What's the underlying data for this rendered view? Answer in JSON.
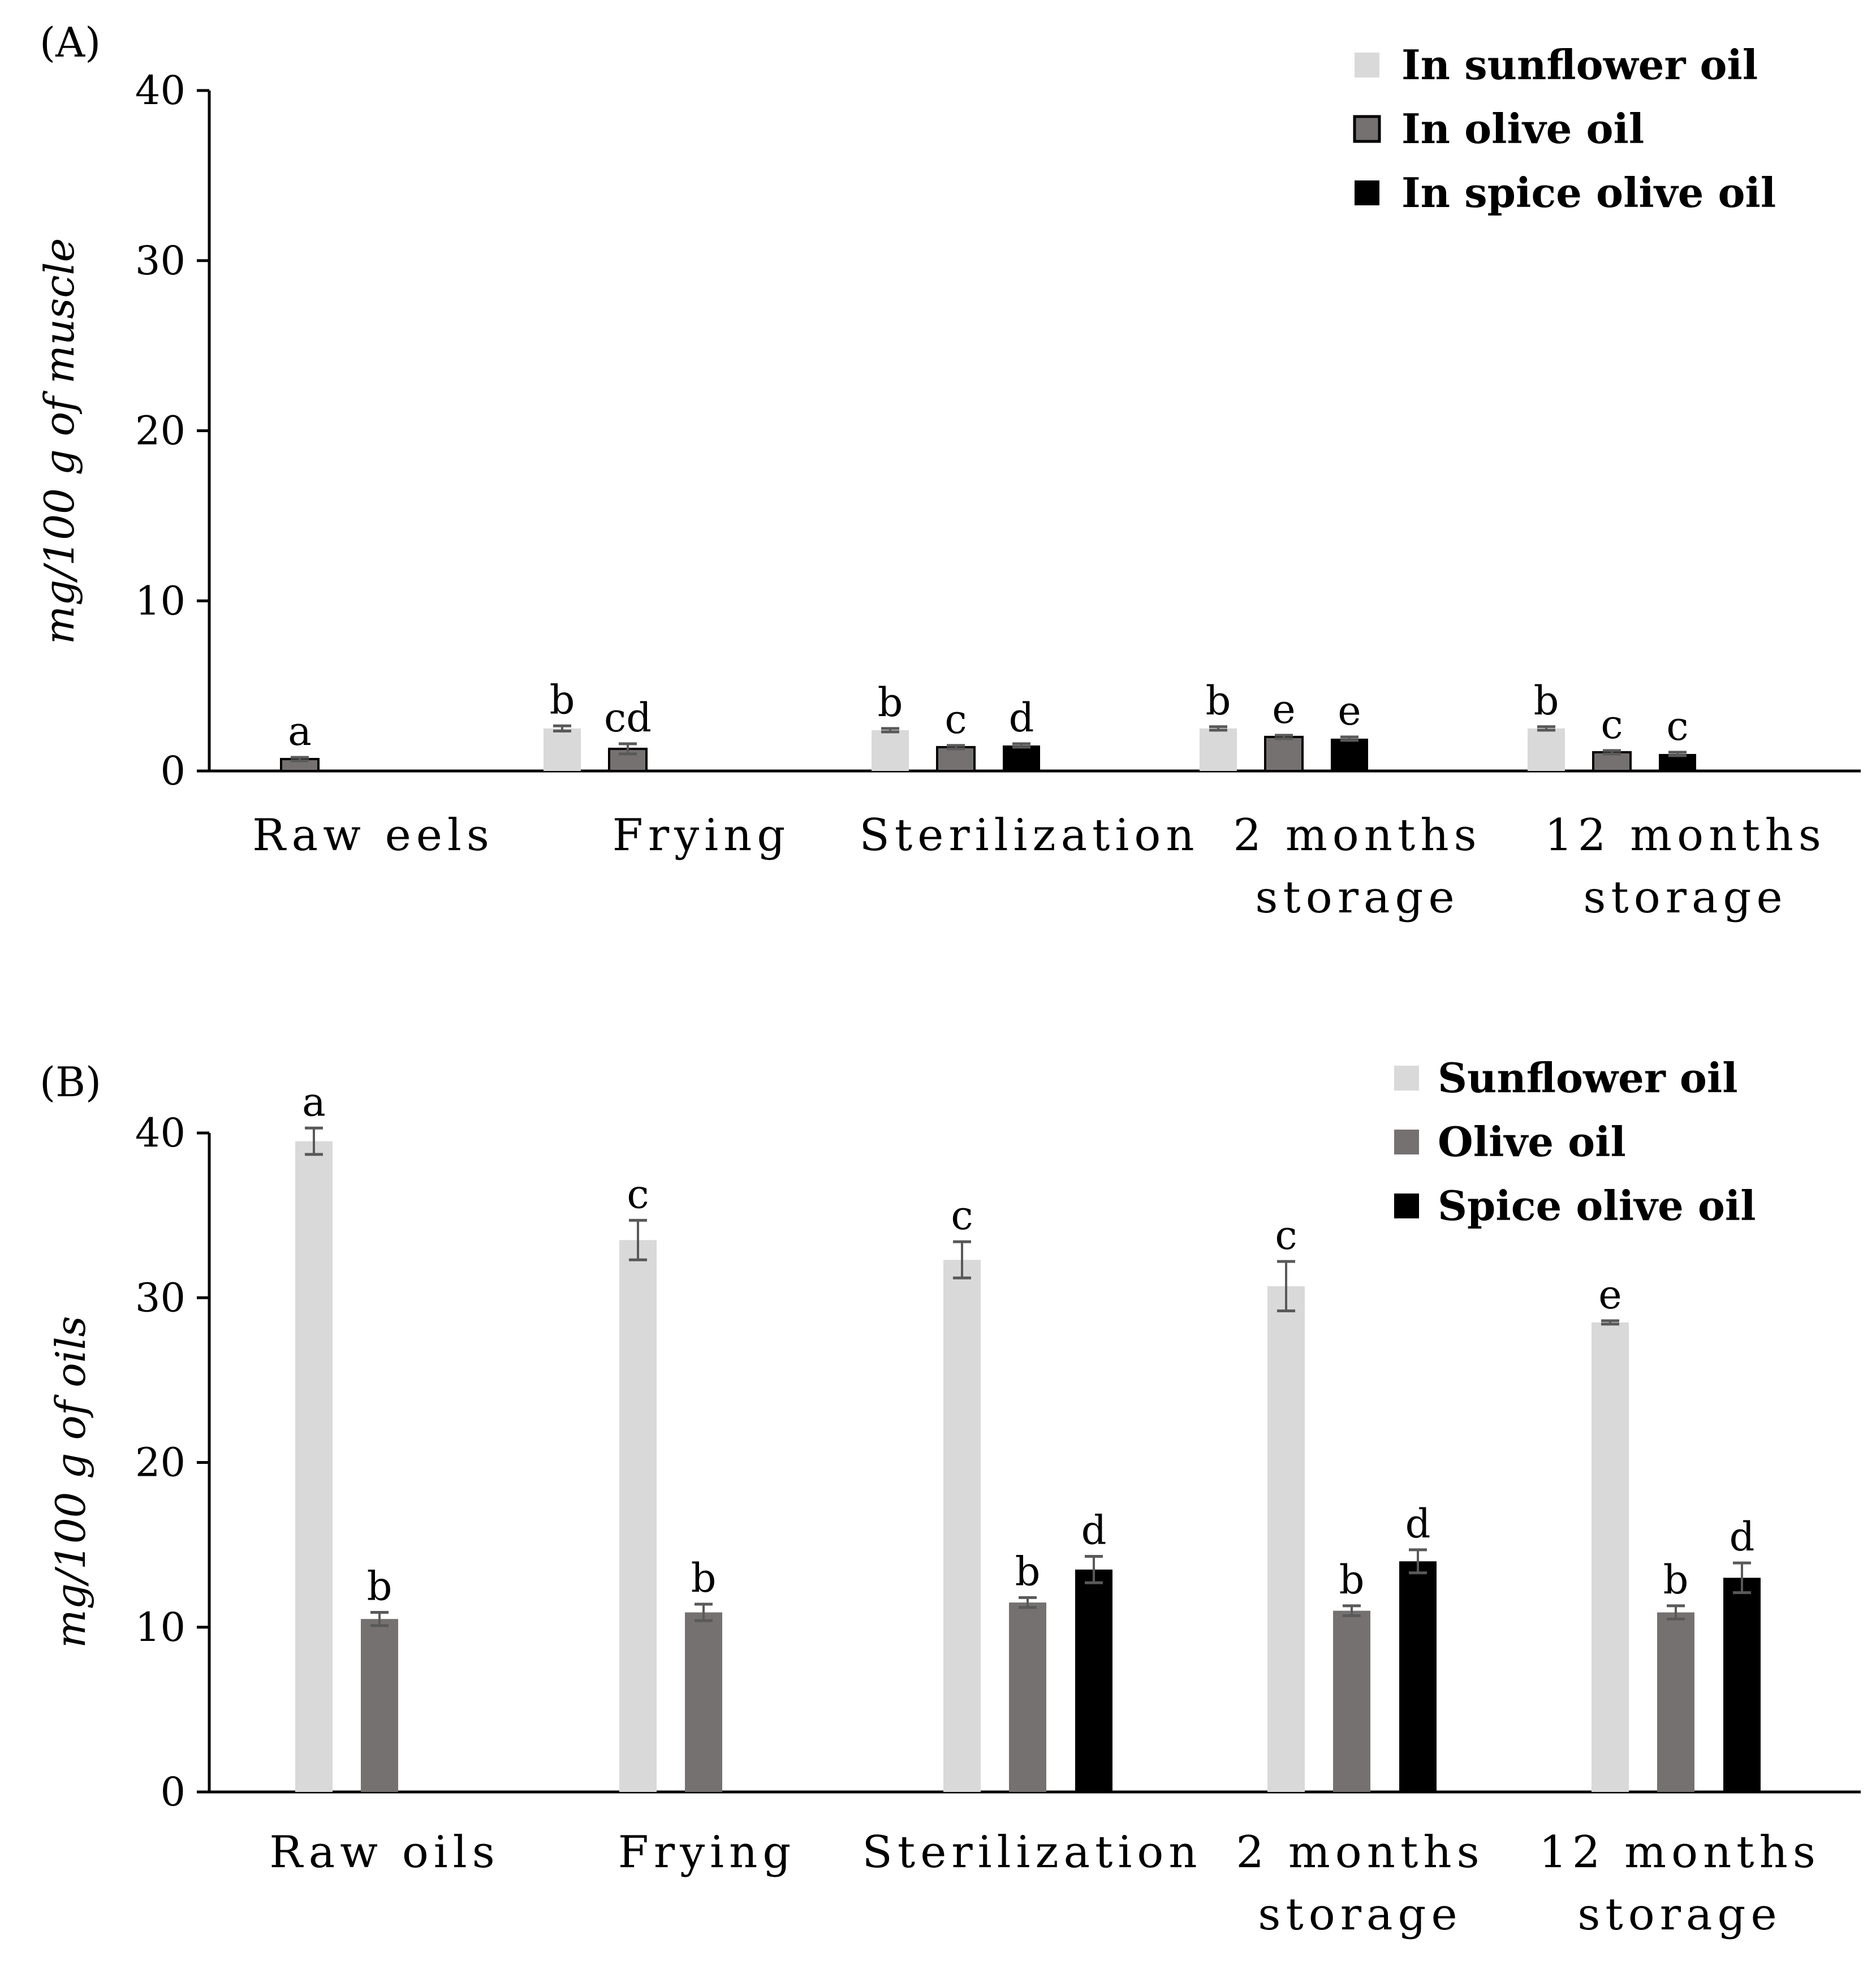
{
  "chart_data": [
    {
      "type": "bar",
      "panel_label": "A",
      "ylabel": "mg/100 g of muscle",
      "ylim": [
        0,
        40
      ],
      "yticks": [
        "0",
        "10",
        "20",
        "30",
        "40"
      ],
      "categories": [
        [
          "Raw eels"
        ],
        [
          "Frying"
        ],
        [
          "Sterilization"
        ],
        [
          "2 months",
          "storage"
        ],
        [
          "12 months",
          "storage"
        ]
      ],
      "legend_position": "top-right",
      "series": [
        {
          "name": "In sunflower oil",
          "color": "#d9d9d9",
          "outlined": false,
          "values": [
            null,
            2.5,
            2.4,
            2.5,
            2.5
          ],
          "errors": [
            null,
            0.15,
            0.1,
            0.1,
            0.1
          ],
          "letters": [
            null,
            "b",
            "b",
            "b",
            "b"
          ]
        },
        {
          "name": "In olive oil",
          "color": "#767171",
          "outlined": true,
          "values": [
            0.7,
            1.3,
            1.4,
            2.0,
            1.1
          ],
          "errors": [
            0.1,
            0.3,
            0.1,
            0.1,
            0.1
          ],
          "letters": [
            "a",
            "cd",
            "c",
            "e",
            "c"
          ]
        },
        {
          "name": "In spice olive oil",
          "color": "#000000",
          "outlined": false,
          "values": [
            null,
            null,
            1.5,
            1.9,
            1.0
          ],
          "errors": [
            null,
            null,
            0.1,
            0.1,
            0.1
          ],
          "letters": [
            null,
            null,
            "d",
            "e",
            "c"
          ]
        }
      ]
    },
    {
      "type": "bar",
      "panel_label": "B",
      "ylabel": "mg/100 g of oils",
      "ylim": [
        0,
        40
      ],
      "yticks": [
        "0",
        "10",
        "20",
        "30",
        "40"
      ],
      "categories": [
        [
          "Raw oils"
        ],
        [
          "Frying"
        ],
        [
          "Sterilization"
        ],
        [
          "2 months",
          "storage"
        ],
        [
          "12 months",
          "storage"
        ]
      ],
      "legend_position": "top-right",
      "series": [
        {
          "name": "Sunflower oil",
          "color": "#d9d9d9",
          "outlined": false,
          "values": [
            39.5,
            33.5,
            32.3,
            30.7,
            28.5
          ],
          "errors": [
            0.8,
            1.2,
            1.1,
            1.5,
            0.1
          ],
          "letters": [
            "a",
            "c",
            "c",
            "c",
            "e"
          ]
        },
        {
          "name": "Olive oil",
          "color": "#767171",
          "outlined": false,
          "values": [
            10.5,
            10.9,
            11.5,
            11.0,
            10.9
          ],
          "errors": [
            0.4,
            0.5,
            0.3,
            0.3,
            0.4
          ],
          "letters": [
            "b",
            "b",
            "b",
            "b",
            "b"
          ]
        },
        {
          "name": "Spice olive oil",
          "color": "#000000",
          "outlined": false,
          "values": [
            null,
            null,
            13.5,
            14.0,
            13.0
          ],
          "errors": [
            null,
            null,
            0.8,
            0.7,
            0.9
          ],
          "letters": [
            null,
            null,
            "d",
            "d",
            "d"
          ]
        }
      ]
    }
  ]
}
